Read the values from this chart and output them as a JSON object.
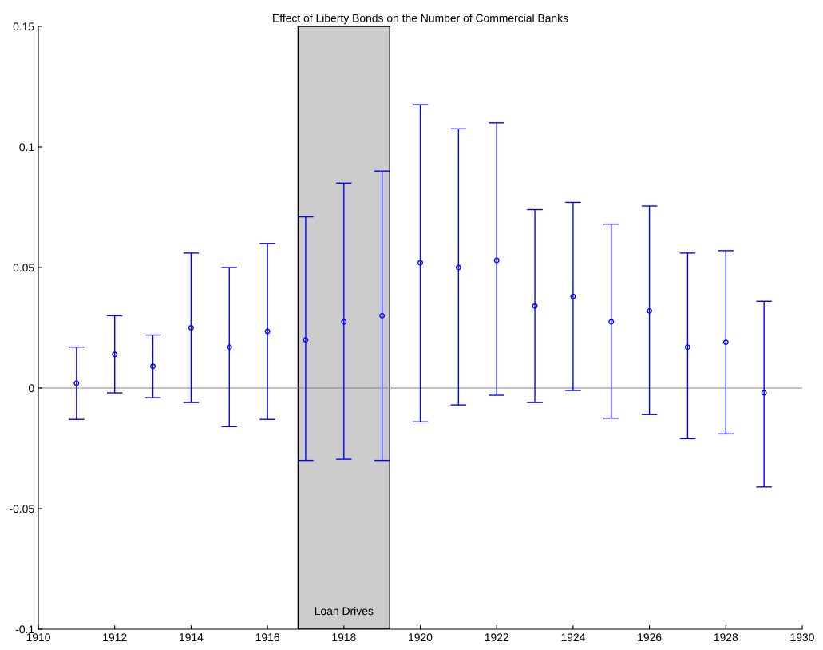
{
  "chart_data": {
    "type": "scatter",
    "title": "Effect of Liberty Bonds on the Number of Commercial Banks",
    "x": [
      1911,
      1912,
      1913,
      1914,
      1915,
      1916,
      1917,
      1918,
      1919,
      1920,
      1921,
      1922,
      1923,
      1924,
      1925,
      1926,
      1927,
      1928,
      1929
    ],
    "series": [
      {
        "color": "#0000ff",
        "values": [
          0.002,
          0.014,
          0.009,
          0.025,
          0.017,
          0.0235,
          0.02,
          0.0275,
          0.03,
          0.052,
          0.05,
          0.053,
          0.034,
          0.038,
          0.0275,
          0.032,
          0.017,
          0.019,
          -0.002
        ],
        "errors": [
          [
            -0.013,
            0.017
          ],
          [
            -0.002,
            0.03
          ],
          [
            -0.004,
            0.022
          ],
          [
            -0.006,
            0.056
          ],
          [
            -0.016,
            0.05
          ],
          [
            -0.013,
            0.06
          ],
          [
            -0.03,
            0.071
          ],
          [
            -0.0295,
            0.085
          ],
          [
            -0.03,
            0.09
          ],
          [
            -0.014,
            0.1175
          ],
          [
            -0.007,
            0.1075
          ],
          [
            -0.003,
            0.11
          ],
          [
            -0.006,
            0.074
          ],
          [
            -0.001,
            0.077
          ],
          [
            -0.0125,
            0.068
          ],
          [
            -0.011,
            0.0755
          ],
          [
            -0.021,
            0.056
          ],
          [
            -0.019,
            0.057
          ],
          [
            -0.041,
            0.036
          ]
        ]
      }
    ],
    "marker": "circle",
    "xlim": [
      1910,
      1930
    ],
    "xticks": [
      1910,
      1912,
      1914,
      1916,
      1918,
      1920,
      1922,
      1924,
      1926,
      1928,
      1930
    ],
    "ylim": [
      -0.1,
      0.15
    ],
    "yticks": [
      {
        "value": -0.1,
        "label": "-0.1"
      },
      {
        "value": -0.05,
        "label": "-0.05"
      },
      {
        "value": 0,
        "label": "0"
      },
      {
        "value": 0.05,
        "label": "0.05"
      },
      {
        "value": 0.1,
        "label": "0.1"
      },
      {
        "value": 0.15,
        "label": "0.15"
      }
    ],
    "ref_lines": [
      {
        "axis": "y",
        "value": 0,
        "color": "#808080"
      }
    ],
    "bands": [
      {
        "axis": "x",
        "from": 1916.8,
        "to": 1919.2,
        "label": "Loan Drives",
        "color": "#cccccc"
      }
    ],
    "grid": false
  }
}
